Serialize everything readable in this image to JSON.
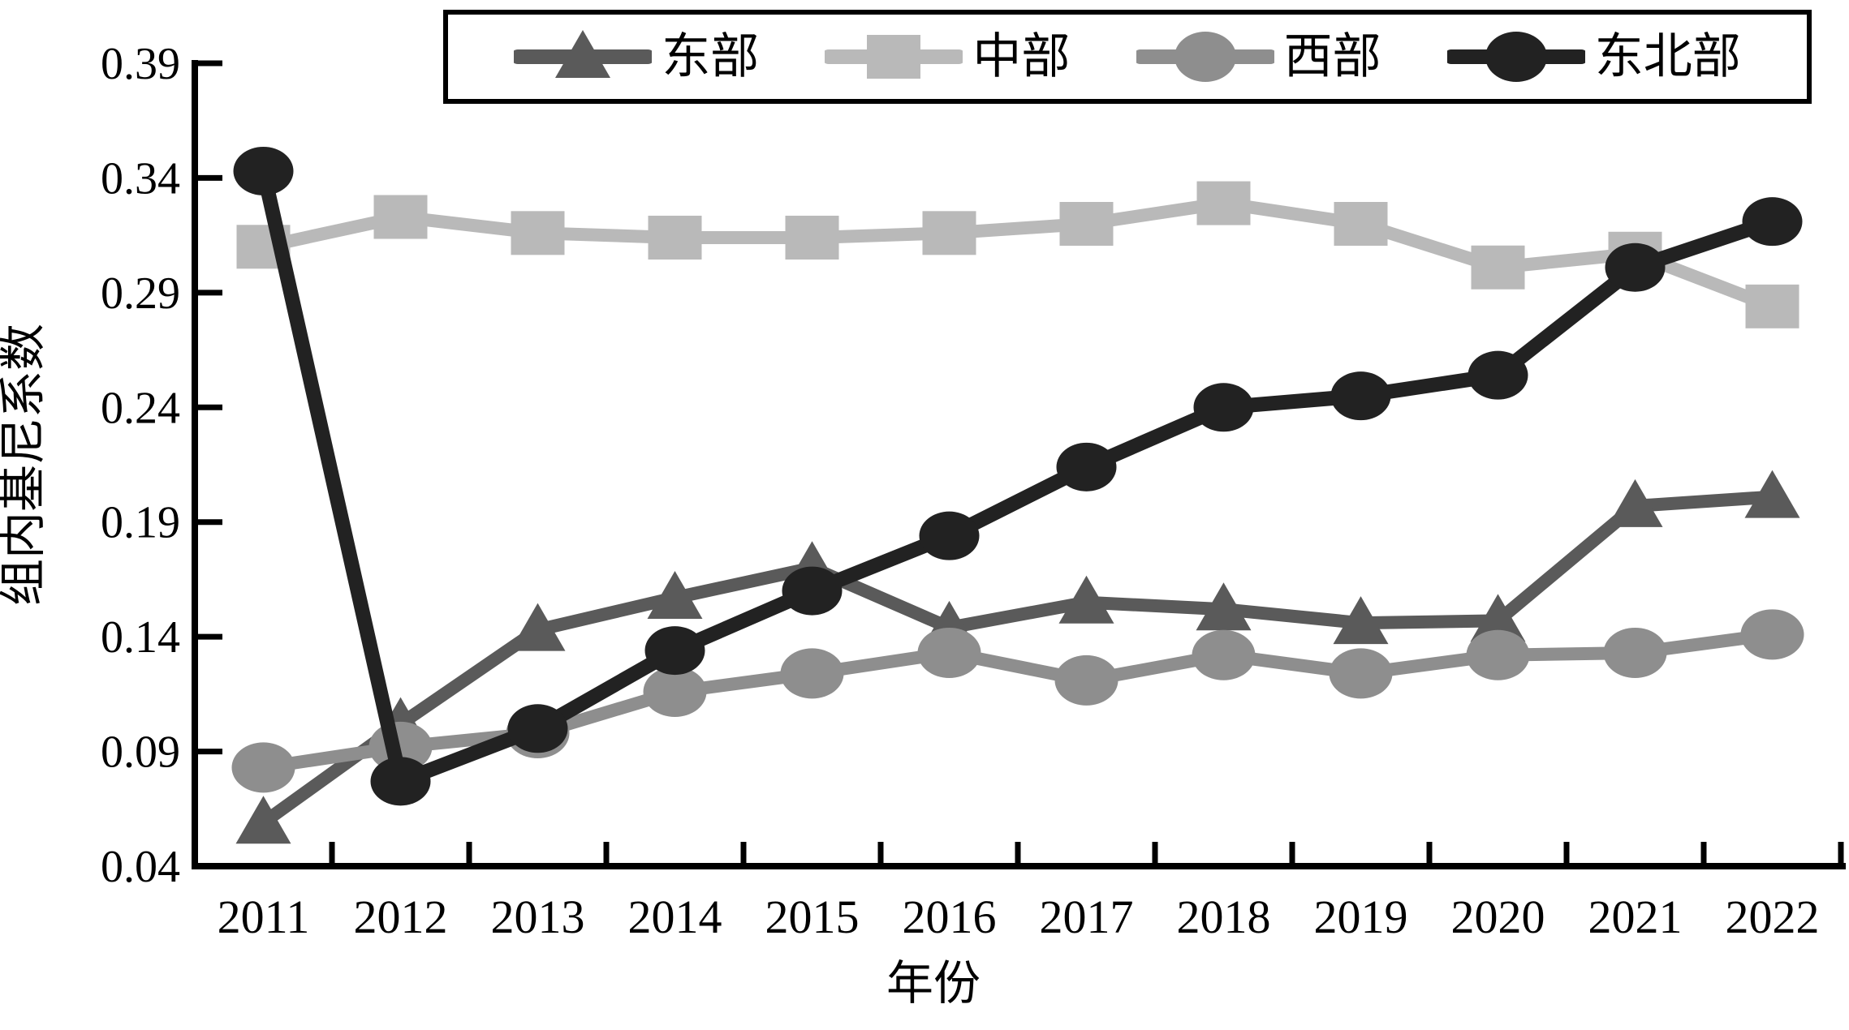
{
  "figure": {
    "background": "#ffffff",
    "axis_color": "#000000"
  },
  "chart_data": {
    "type": "line",
    "title": "",
    "xlabel": "年份",
    "ylabel": "组内基尼系数",
    "x": [
      2011,
      2012,
      2013,
      2014,
      2015,
      2016,
      2017,
      2018,
      2019,
      2020,
      2021,
      2022
    ],
    "series": [
      {
        "name": "东部",
        "marker": "triangle",
        "color": "#5a5a5a",
        "values": [
          0.059,
          0.102,
          0.143,
          0.157,
          0.17,
          0.144,
          0.155,
          0.152,
          0.146,
          0.147,
          0.197,
          0.201
        ]
      },
      {
        "name": "中部",
        "marker": "square",
        "color": "#b9b9b9",
        "values": [
          0.31,
          0.323,
          0.316,
          0.314,
          0.314,
          0.316,
          0.32,
          0.329,
          0.32,
          0.301,
          0.307,
          0.284
        ]
      },
      {
        "name": "西部",
        "marker": "circle",
        "color": "#8e8e8e",
        "values": [
          0.083,
          0.092,
          0.098,
          0.116,
          0.124,
          0.133,
          0.121,
          0.132,
          0.124,
          0.132,
          0.133,
          0.141
        ]
      },
      {
        "name": "东北部",
        "marker": "circle",
        "color": "#222222",
        "values": [
          0.343,
          0.077,
          0.1,
          0.134,
          0.16,
          0.184,
          0.214,
          0.24,
          0.245,
          0.254,
          0.301,
          0.321
        ]
      }
    ],
    "ylim": [
      0.04,
      0.39
    ],
    "yticks": [
      0.04,
      0.09,
      0.14,
      0.19,
      0.24,
      0.29,
      0.34,
      0.39
    ],
    "ytick_labels": [
      "0.04",
      "0.09",
      "0.14",
      "0.19",
      "0.24",
      "0.29",
      "0.34",
      "0.39"
    ],
    "xtick_labels": [
      "2011",
      "2012",
      "2013",
      "2014",
      "2015",
      "2016",
      "2017",
      "2018",
      "2019",
      "2020",
      "2021",
      "2022"
    ],
    "grid": false,
    "legend_position": "top"
  }
}
